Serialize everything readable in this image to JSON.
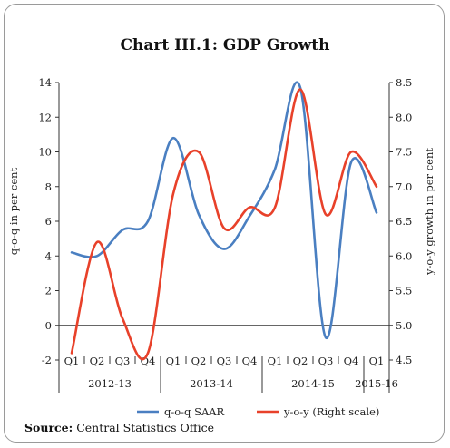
{
  "chart_data": {
    "type": "line",
    "title": "Chart III.1: GDP Growth",
    "quarters": [
      "Q1",
      "Q2",
      "Q3",
      "Q4",
      "Q1",
      "Q2",
      "Q3",
      "Q4",
      "Q1",
      "Q2",
      "Q3",
      "Q4",
      "Q1"
    ],
    "year_groups": [
      {
        "label": "2012-13",
        "span": 4
      },
      {
        "label": "2013-14",
        "span": 4
      },
      {
        "label": "2014-15",
        "span": 4
      },
      {
        "label": "2015-16",
        "span": 1
      }
    ],
    "y_left": {
      "label": "q-o-q  in per cent",
      "min": -2,
      "max": 14,
      "ticks": [
        -2,
        0,
        2,
        4,
        6,
        8,
        10,
        12,
        14
      ]
    },
    "y_right": {
      "label": "y-o-y growth in per cent",
      "min": 4.5,
      "max": 8.5,
      "ticks": [
        "4.5",
        "5.0",
        "5.5",
        "6.0",
        "6.5",
        "7.0",
        "7.5",
        "8.0",
        "8.5"
      ]
    },
    "series": [
      {
        "name": "q-o-q SAAR",
        "axis": "left",
        "color": "#4a7fc1",
        "values": [
          4.2,
          4.0,
          5.5,
          6.0,
          10.8,
          6.4,
          4.4,
          6.3,
          9.0,
          13.7,
          -0.7,
          9.4,
          6.5
        ]
      },
      {
        "name": "y-o-y (Right scale)",
        "axis": "right",
        "color": "#e8412a",
        "values": [
          4.6,
          6.2,
          5.1,
          4.6,
          6.9,
          7.5,
          6.4,
          6.7,
          6.7,
          8.4,
          6.6,
          7.5,
          7.0
        ]
      }
    ]
  },
  "source": {
    "label": "Source:",
    "text": " Central Statistics Office"
  }
}
